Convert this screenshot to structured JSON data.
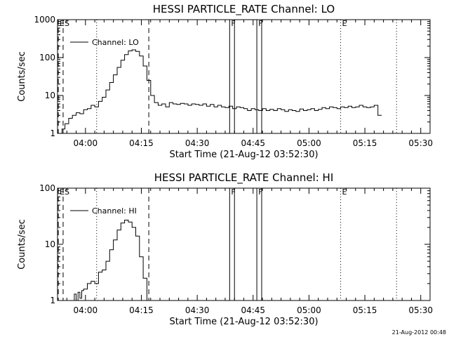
{
  "footer_timestamp": "21-Aug-2012 00:48",
  "chart_data": [
    {
      "type": "line",
      "title": "HESSI PARTICLE_RATE Channel: LO",
      "xlabel": "Start Time (21-Aug-12 03:52:30)",
      "ylabel": "Counts/sec",
      "yscale": "log",
      "ylim": [
        1,
        1000
      ],
      "xlim_minutes": [
        0,
        100
      ],
      "x_units": "minutes after 03:52:30",
      "y_ticks": [
        1,
        10,
        100,
        1000
      ],
      "y_tick_labels": [
        "1",
        "10",
        "100",
        "1000"
      ],
      "x_ticks": [
        7.5,
        22.5,
        37.5,
        52.5,
        67.5,
        82.5,
        97.5
      ],
      "x_tick_labels": [
        "04:00",
        "04:15",
        "04:30",
        "04:45",
        "05:00",
        "05:15",
        "05:30"
      ],
      "legend": "Channel: LO",
      "series": [
        {
          "name": "Channel: LO",
          "x": [
            0.5,
            1.2,
            2.0,
            3.0,
            4.0,
            5.0,
            6.0,
            7.0,
            8.0,
            9.0,
            10.0,
            11.0,
            12.0,
            13.0,
            14.0,
            15.0,
            16.0,
            17.0,
            18.0,
            19.0,
            20.0,
            21.0,
            22.0,
            23.0,
            24.0,
            25.0,
            26.0,
            27.0,
            28.0,
            29.0,
            30.0,
            31.0,
            32.0,
            33.0,
            34.0,
            35.0,
            36.0,
            37.0,
            38.0,
            39.0,
            40.0,
            41.0,
            42.0,
            43.0,
            44.0,
            45.0,
            46.0,
            47.0,
            48.0,
            49.0,
            50.0,
            51.0,
            52.0,
            53.0,
            54.0,
            55.0,
            56.0,
            57.0,
            58.0,
            59.0,
            60.0,
            61.0,
            62.0,
            63.0,
            64.0,
            65.0,
            66.0,
            67.0,
            68.0,
            69.0,
            70.0,
            71.0,
            72.0,
            73.0,
            74.0,
            75.0,
            76.0,
            77.0,
            78.0,
            79.0,
            80.0,
            81.0,
            82.0,
            83.0,
            84.0,
            85.0,
            86.0
          ],
          "y": [
            1.0,
            1.3,
            1.8,
            2.5,
            3.0,
            3.5,
            3.3,
            4.2,
            4.5,
            5.5,
            5.0,
            7.0,
            9.0,
            14,
            22,
            35,
            55,
            85,
            120,
            150,
            160,
            145,
            110,
            60,
            25,
            10,
            6.5,
            5.5,
            6.0,
            5.0,
            6.5,
            6.0,
            5.8,
            6.2,
            6.0,
            5.5,
            6.0,
            5.8,
            5.5,
            6.0,
            5.2,
            5.8,
            5.0,
            5.5,
            5.0,
            4.8,
            5.2,
            4.5,
            5.0,
            4.8,
            4.5,
            4.0,
            4.5,
            4.2,
            4.0,
            4.5,
            4.0,
            4.3,
            4.0,
            4.5,
            4.2,
            3.8,
            4.2,
            4.0,
            3.8,
            4.4,
            4.0,
            4.2,
            4.5,
            4.0,
            4.3,
            4.8,
            4.5,
            5.0,
            4.8,
            4.5,
            5.0,
            4.8,
            5.2,
            4.8,
            5.0,
            5.5,
            5.0,
            4.8,
            5.0,
            5.5,
            3.0
          ]
        }
      ],
      "markers": [
        {
          "label": "E",
          "x": 0.2,
          "style": "dashed"
        },
        {
          "label": "S",
          "x": 1.5,
          "style": "dashed"
        },
        {
          "label": "",
          "x": 10.5,
          "style": "dotted"
        },
        {
          "label": "",
          "x": 24.5,
          "style": "dashed"
        },
        {
          "label": "F",
          "x": 46.2,
          "style": "solid"
        },
        {
          "label": "",
          "x": 47.5,
          "style": "solid"
        },
        {
          "label": "F",
          "x": 53.5,
          "style": "solid"
        },
        {
          "label": "",
          "x": 54.8,
          "style": "solid"
        },
        {
          "label": "E",
          "x": 76.0,
          "style": "dotted"
        },
        {
          "label": "",
          "x": 91.0,
          "style": "dotted"
        }
      ]
    },
    {
      "type": "line",
      "title": "HESSI PARTICLE_RATE Channel: HI",
      "xlabel": "Start Time (21-Aug-12 03:52:30)",
      "ylabel": "Counts/sec",
      "yscale": "log",
      "ylim": [
        1,
        100
      ],
      "xlim_minutes": [
        0,
        100
      ],
      "x_units": "minutes after 03:52:30",
      "y_ticks": [
        1,
        10,
        100
      ],
      "y_tick_labels": [
        "1",
        "10",
        "100"
      ],
      "x_ticks": [
        7.5,
        22.5,
        37.5,
        52.5,
        67.5,
        82.5,
        97.5
      ],
      "x_tick_labels": [
        "04:00",
        "04:15",
        "04:30",
        "04:45",
        "05:00",
        "05:15",
        "05:30"
      ],
      "legend": "Channel: HI",
      "series": [
        {
          "name": "Channel: HI",
          "x": [
            3.5,
            4.5,
            5.0,
            5.5,
            6.0,
            6.5,
            7.0,
            8.0,
            9.0,
            10.0,
            11.0,
            12.0,
            13.0,
            14.0,
            15.0,
            16.0,
            17.0,
            18.0,
            19.0,
            20.0,
            21.0,
            22.0,
            23.0,
            24.0
          ],
          "y": [
            1.0,
            1.3,
            1.0,
            1.4,
            1.1,
            1.5,
            1.6,
            2.0,
            2.2,
            2.0,
            3.2,
            3.5,
            5.0,
            8.0,
            12.0,
            18.0,
            24.0,
            27.0,
            25.0,
            20.0,
            14.0,
            6.0,
            2.5,
            1.0
          ]
        }
      ],
      "markers": [
        {
          "label": "E",
          "x": 0.2,
          "style": "dashed"
        },
        {
          "label": "S",
          "x": 1.5,
          "style": "dashed"
        },
        {
          "label": "",
          "x": 10.5,
          "style": "dotted"
        },
        {
          "label": "",
          "x": 24.5,
          "style": "dashed"
        },
        {
          "label": "F",
          "x": 46.2,
          "style": "solid"
        },
        {
          "label": "",
          "x": 47.5,
          "style": "solid"
        },
        {
          "label": "F",
          "x": 53.5,
          "style": "solid"
        },
        {
          "label": "",
          "x": 54.8,
          "style": "solid"
        },
        {
          "label": "E",
          "x": 76.0,
          "style": "dotted"
        },
        {
          "label": "",
          "x": 91.0,
          "style": "dotted"
        }
      ]
    }
  ]
}
